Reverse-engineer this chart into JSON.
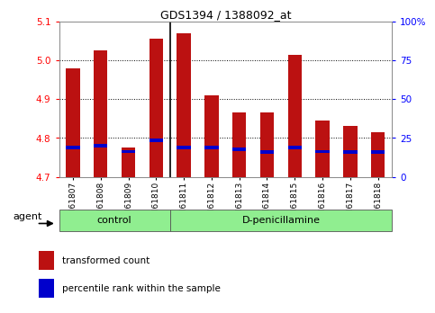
{
  "title": "GDS1394 / 1388092_at",
  "samples": [
    "GSM61807",
    "GSM61808",
    "GSM61809",
    "GSM61810",
    "GSM61811",
    "GSM61812",
    "GSM61813",
    "GSM61814",
    "GSM61815",
    "GSM61816",
    "GSM61817",
    "GSM61818"
  ],
  "red_bar_top": [
    4.98,
    5.025,
    4.775,
    5.055,
    5.07,
    4.91,
    4.865,
    4.865,
    5.015,
    4.845,
    4.83,
    4.815
  ],
  "blue_bar_top": [
    4.775,
    4.78,
    4.765,
    4.795,
    4.775,
    4.775,
    4.77,
    4.763,
    4.775,
    4.765,
    4.763,
    4.763
  ],
  "bar_bottom": 4.7,
  "ylim_left": [
    4.7,
    5.1
  ],
  "ylim_right": [
    0,
    100
  ],
  "yticks_left": [
    4.7,
    4.8,
    4.9,
    5.0,
    5.1
  ],
  "yticks_right": [
    0,
    25,
    50,
    75,
    100
  ],
  "ytick_right_labels": [
    "0",
    "25",
    "50",
    "75",
    "100%"
  ],
  "group_labels": [
    "control",
    "D-penicillamine"
  ],
  "agent_label": "agent",
  "red_color": "#bb1111",
  "blue_color": "#0000cc",
  "bar_width": 0.5,
  "bg_plot": "#ffffff",
  "green_color": "#90EE90",
  "legend_red": "transformed count",
  "legend_blue": "percentile rank within the sample",
  "n_control": 4,
  "n_dpen": 8
}
